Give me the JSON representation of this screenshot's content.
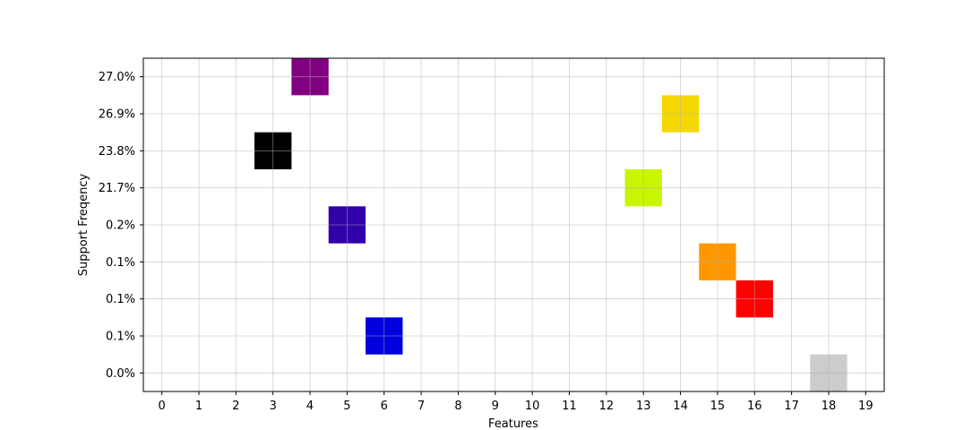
{
  "chart_data": {
    "type": "heatmap",
    "title": "",
    "xlabel": "Features",
    "ylabel": "Support Freqency",
    "x_ticks": [
      "0",
      "1",
      "2",
      "3",
      "4",
      "5",
      "6",
      "7",
      "8",
      "9",
      "10",
      "11",
      "12",
      "13",
      "14",
      "15",
      "16",
      "17",
      "18",
      "19"
    ],
    "y_ticks": [
      "0.0%",
      "0.1%",
      "0.1%",
      "0.1%",
      "0.2%",
      "21.7%",
      "23.8%",
      "26.9%",
      "27.0%"
    ],
    "grid": true,
    "cells": [
      {
        "feature": 4,
        "row": 8,
        "support": "27.0%",
        "color": "#800080"
      },
      {
        "feature": 14,
        "row": 7,
        "support": "26.9%",
        "color": "#f5d800"
      },
      {
        "feature": 3,
        "row": 6,
        "support": "23.8%",
        "color": "#000000"
      },
      {
        "feature": 13,
        "row": 5,
        "support": "21.7%",
        "color": "#c8f500"
      },
      {
        "feature": 5,
        "row": 4,
        "support": "0.2%",
        "color": "#3000a8"
      },
      {
        "feature": 15,
        "row": 3,
        "support": "0.1%",
        "color": "#ff9800"
      },
      {
        "feature": 16,
        "row": 2,
        "support": "0.1%",
        "color": "#ff0000"
      },
      {
        "feature": 6,
        "row": 1,
        "support": "0.1%",
        "color": "#0000dd"
      },
      {
        "feature": 18,
        "row": 0,
        "support": "0.0%",
        "color": "#cccccc"
      }
    ]
  }
}
